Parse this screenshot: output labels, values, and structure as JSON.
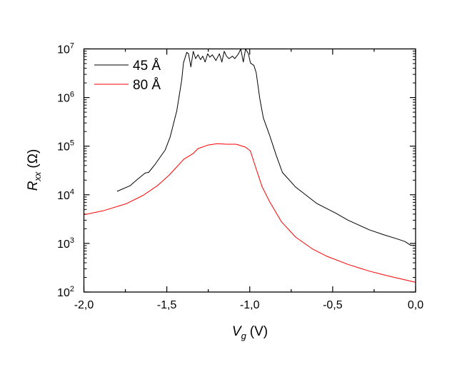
{
  "chart_data": {
    "type": "line",
    "title": "",
    "xlabel": {
      "symbol": "V",
      "subscript": "g",
      "unit": "(V)"
    },
    "ylabel": {
      "symbol": "R",
      "subscript": "xx",
      "unit": "(Ω)"
    },
    "xlim": [
      -2.0,
      0.0
    ],
    "ylim": [
      100,
      10000000
    ],
    "y_scale": "log10",
    "x_ticks": [
      -2.0,
      -1.5,
      -1.0,
      -0.5,
      0.0
    ],
    "x_tick_labels": [
      "-2,0",
      "-1,5",
      "-1,0",
      "-0,5",
      "0,0"
    ],
    "y_ticks_exponent": [
      2,
      3,
      4,
      5,
      6,
      7
    ],
    "y_tick_base": "10",
    "grid": false,
    "legend_position": "top-left",
    "series": [
      {
        "name": "45 Å",
        "color": "#000000",
        "x": [
          -1.8,
          -1.72,
          -1.68,
          -1.63,
          -1.61,
          -1.57,
          -1.51,
          -1.48,
          -1.44,
          -1.41,
          -1.4,
          -1.38,
          -1.369,
          -1.355,
          -1.341,
          -1.326,
          -1.312,
          -1.297,
          -1.283,
          -1.269,
          -1.254,
          -1.24,
          -1.226,
          -1.204,
          -1.183,
          -1.168,
          -1.154,
          -1.14,
          -1.125,
          -1.104,
          -1.09,
          -1.068,
          -1.054,
          -1.039,
          -1.025,
          -1.008,
          -0.996,
          -0.975,
          -0.961,
          -0.939,
          -0.918,
          -0.882,
          -0.839,
          -0.803,
          -0.724,
          -0.595,
          -0.48,
          -0.409,
          -0.28,
          -0.194,
          -0.108,
          -0.065,
          -0.029,
          -0.007
        ],
        "y_log10": [
          4.07,
          4.19,
          4.31,
          4.45,
          4.46,
          4.63,
          4.92,
          5.19,
          5.73,
          6.36,
          6.71,
          6.93,
          6.9,
          6.63,
          6.95,
          6.8,
          6.88,
          6.78,
          6.85,
          6.73,
          6.9,
          6.83,
          6.88,
          6.76,
          6.9,
          6.73,
          6.95,
          6.85,
          6.8,
          6.85,
          6.8,
          6.9,
          7.0,
          6.73,
          7.0,
          6.9,
          6.71,
          6.66,
          6.51,
          5.97,
          5.58,
          5.24,
          4.8,
          4.46,
          4.16,
          3.82,
          3.62,
          3.48,
          3.28,
          3.18,
          3.09,
          3.04,
          2.96,
          2.96
        ]
      },
      {
        "name": "80 Å",
        "color": "#ff0000",
        "x": [
          -2.0,
          -1.885,
          -1.742,
          -1.642,
          -1.556,
          -1.484,
          -1.398,
          -1.341,
          -1.312,
          -1.254,
          -1.197,
          -1.14,
          -1.082,
          -1.025,
          -0.996,
          -0.968,
          -0.925,
          -0.882,
          -0.81,
          -0.724,
          -0.624,
          -0.538,
          -0.409,
          -0.28,
          -0.165,
          0.0
        ],
        "y_log10": [
          3.59,
          3.67,
          3.82,
          3.99,
          4.19,
          4.41,
          4.73,
          4.85,
          4.95,
          5.02,
          5.05,
          5.04,
          5.04,
          4.98,
          4.9,
          4.6,
          4.16,
          3.87,
          3.45,
          3.13,
          2.89,
          2.74,
          2.57,
          2.43,
          2.33,
          2.2
        ]
      }
    ]
  }
}
